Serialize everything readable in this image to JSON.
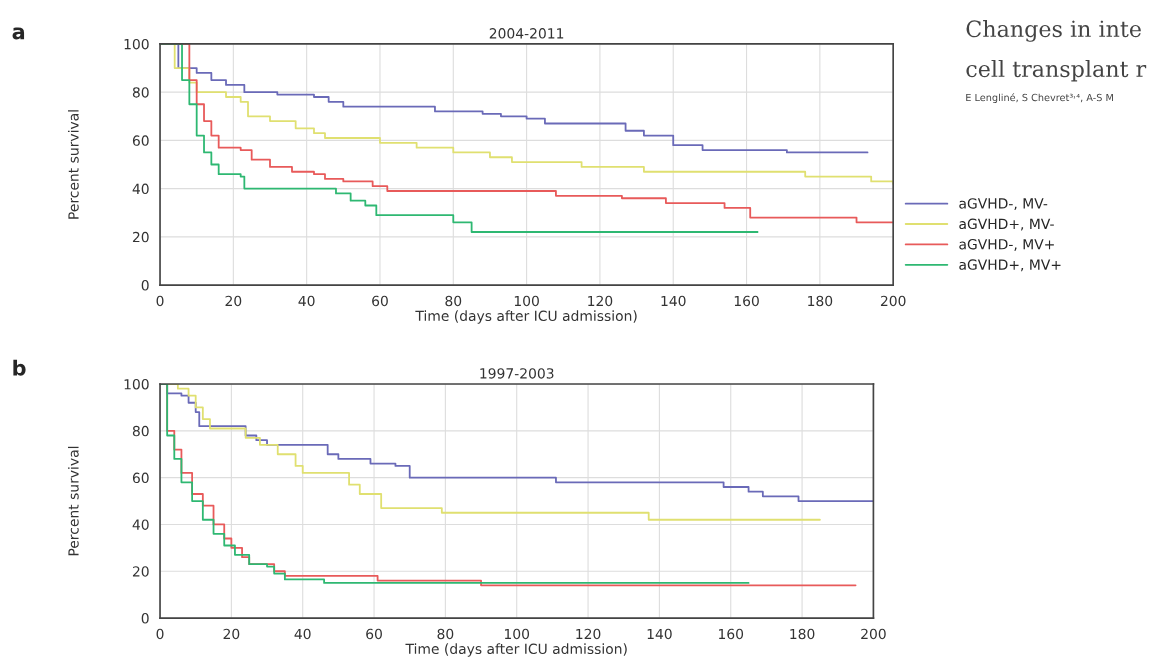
{
  "chart_data": [
    {
      "type": "step",
      "title": "2004-2011",
      "xlabel": "Time (days after ICU admission)",
      "ylabel": "Percent survival",
      "xlim": [
        0,
        200
      ],
      "xticks": [
        0,
        20,
        40,
        60,
        80,
        100,
        120,
        140,
        160,
        180,
        200
      ],
      "ylim": [
        0,
        100
      ],
      "yticks": [
        0,
        20,
        40,
        60,
        80,
        100
      ],
      "grid": true,
      "legend": "right",
      "annotations": [
        "a",
        "Changes in inte",
        "cell transplant r",
        "E Lengliné, S Chevret³˒⁴, A-S M"
      ],
      "series": [
        {
          "name": "aGVHD-, MV-",
          "color": "#6a6ab8",
          "x": [
            0,
            5,
            10,
            14,
            18,
            23,
            32,
            42,
            46,
            50,
            75,
            88,
            93,
            100,
            105,
            127,
            132,
            140,
            148,
            171,
            193
          ],
          "values": [
            100,
            90,
            88,
            85,
            83,
            80,
            79,
            78,
            76,
            74,
            72,
            71,
            70,
            69,
            67,
            64,
            62,
            58,
            56,
            55,
            55
          ]
        },
        {
          "name": "aGVHD+, MV-",
          "color": "#e0e070",
          "x": [
            0,
            4,
            8,
            10,
            18,
            22,
            24,
            30,
            37,
            42,
            45,
            60,
            70,
            80,
            90,
            96,
            115,
            132,
            176,
            194,
            200
          ],
          "values": [
            100,
            90,
            84,
            80,
            78,
            76,
            70,
            68,
            65,
            63,
            61,
            59,
            57,
            55,
            53,
            51,
            49,
            47,
            45,
            43,
            42
          ]
        },
        {
          "name": "aGVHD-, MV+",
          "color": "#e85a5a",
          "x": [
            0,
            8,
            10,
            12,
            14,
            16,
            22,
            25,
            30,
            36,
            42,
            45,
            50,
            58,
            62,
            108,
            126,
            138,
            154,
            161,
            190,
            200
          ],
          "values": [
            100,
            85,
            75,
            68,
            62,
            57,
            56,
            52,
            49,
            47,
            46,
            44,
            43,
            41,
            39,
            37,
            36,
            34,
            32,
            28,
            26,
            26
          ]
        },
        {
          "name": "aGVHD+, MV+",
          "color": "#2eb872",
          "x": [
            0,
            6,
            8,
            10,
            12,
            14,
            16,
            22,
            23,
            48,
            52,
            56,
            59,
            80,
            85,
            163
          ],
          "values": [
            100,
            85,
            75,
            62,
            55,
            50,
            46,
            45,
            40,
            38,
            35,
            33,
            29,
            26,
            22,
            22
          ]
        }
      ]
    },
    {
      "type": "step",
      "title": "1997-2003",
      "xlabel": "Time (days after ICU admission)",
      "ylabel": "Percent survival",
      "xlim": [
        0,
        200
      ],
      "xticks": [
        0,
        20,
        40,
        60,
        80,
        100,
        120,
        140,
        160,
        180,
        200
      ],
      "ylim": [
        0,
        100
      ],
      "yticks": [
        0,
        20,
        40,
        60,
        80,
        100
      ],
      "grid": true,
      "annotations": [
        "b"
      ],
      "series": [
        {
          "color": "#6a6ab8",
          "x": [
            0,
            2,
            6,
            8,
            10,
            11,
            22,
            24,
            27,
            30,
            47,
            50,
            59,
            66,
            70,
            111,
            158,
            165,
            169,
            179,
            200
          ],
          "values": [
            100,
            96,
            95,
            92,
            88,
            82,
            82,
            78,
            76,
            74,
            70,
            68,
            66,
            65,
            60,
            58,
            56,
            54,
            52,
            50,
            50
          ]
        },
        {
          "color": "#e0e070",
          "x": [
            0,
            5,
            8,
            10,
            12,
            14,
            24,
            28,
            33,
            38,
            40,
            53,
            56,
            62,
            79,
            137,
            185
          ],
          "values": [
            100,
            98,
            95,
            90,
            85,
            81,
            77,
            74,
            70,
            65,
            62,
            57,
            53,
            47,
            45,
            42,
            42
          ]
        },
        {
          "color": "#e85a5a",
          "x": [
            0,
            2,
            4,
            6,
            9,
            12,
            15,
            18,
            20,
            23,
            25,
            32,
            35,
            61,
            90,
            195
          ],
          "values": [
            100,
            80,
            72,
            62,
            53,
            48,
            40,
            34,
            30,
            26,
            23,
            20,
            18,
            16,
            14,
            14
          ]
        },
        {
          "color": "#2eb872",
          "x": [
            0,
            2,
            4,
            6,
            9,
            12,
            15,
            18,
            21,
            25,
            30,
            32,
            35,
            46,
            165
          ],
          "values": [
            100,
            78,
            68,
            58,
            50,
            42,
            36,
            31,
            27,
            23,
            22,
            19,
            16.5,
            15,
            15
          ]
        }
      ]
    }
  ]
}
